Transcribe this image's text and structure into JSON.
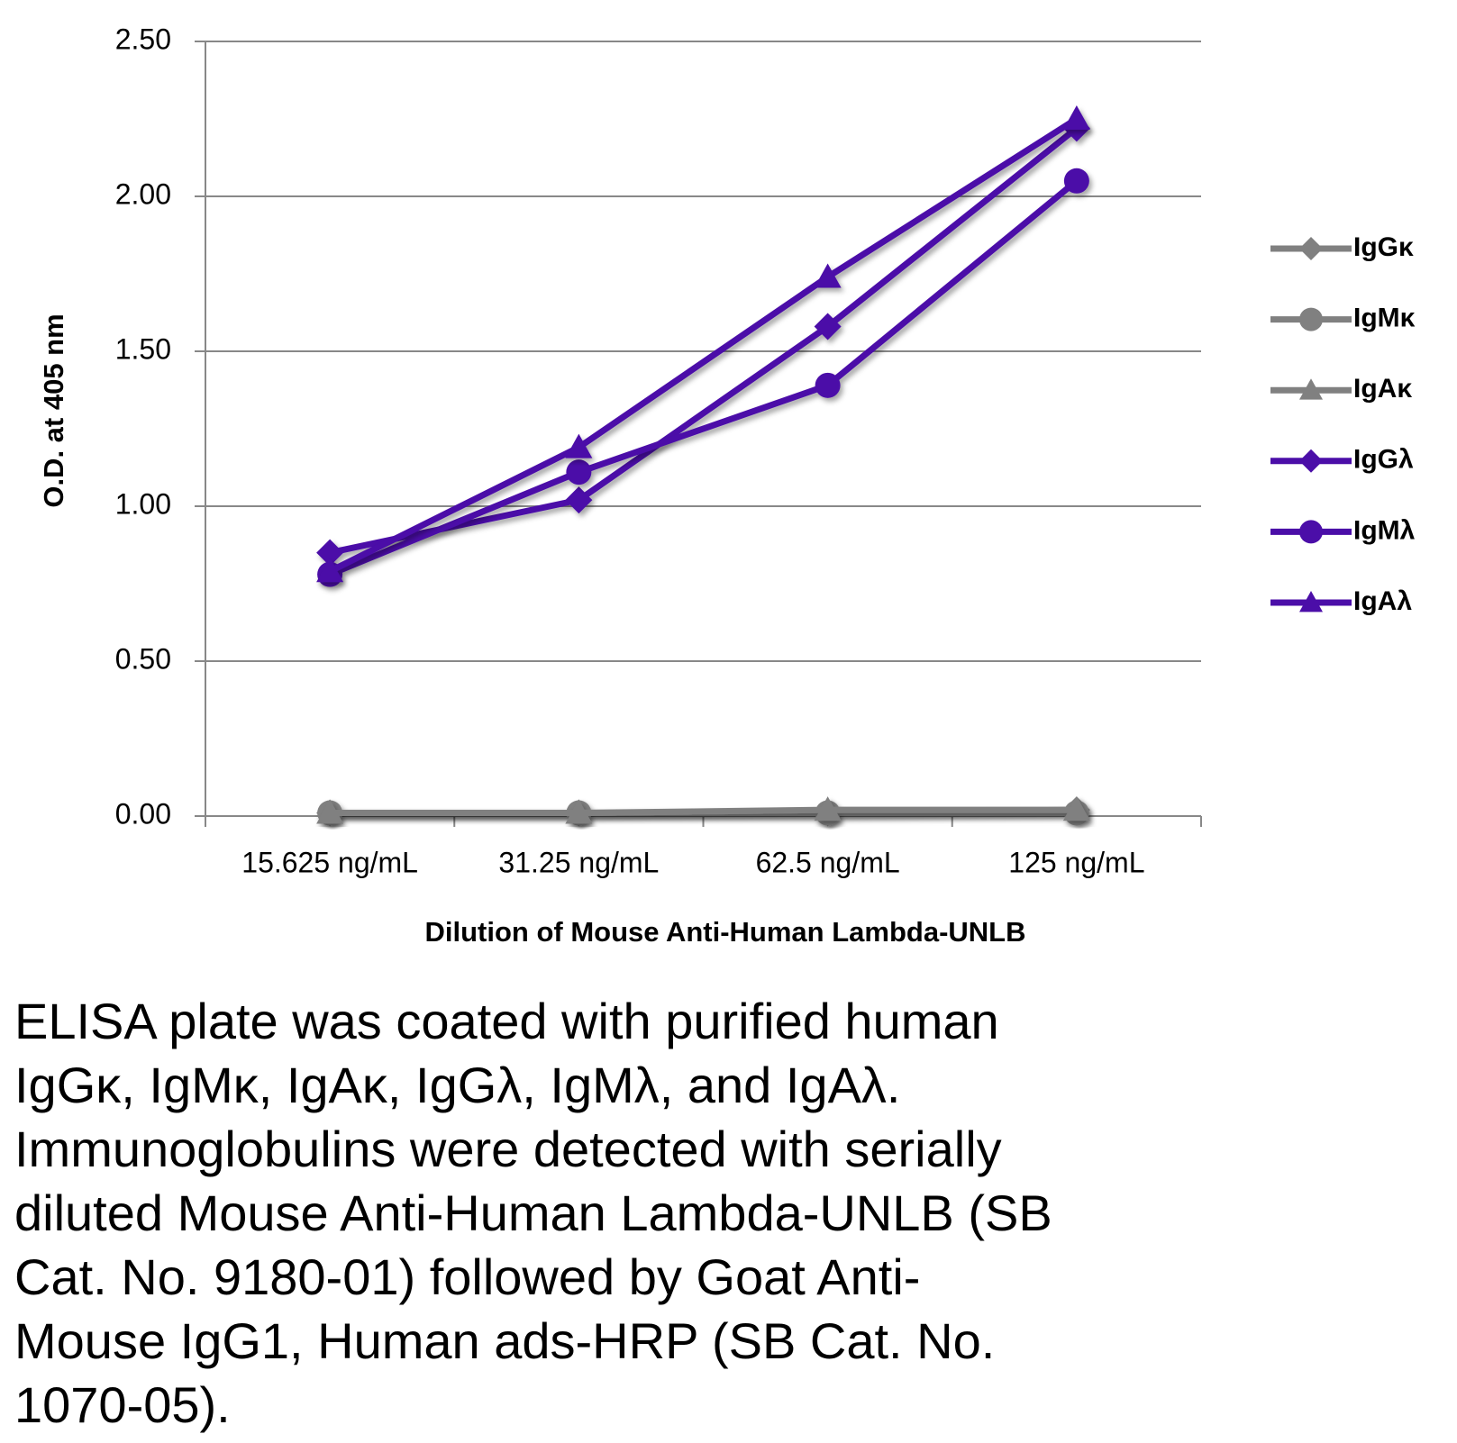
{
  "chart_data": {
    "type": "line",
    "x_label": "Dilution of Mouse Anti-Human Lambda-UNLB",
    "y_label": "O.D. at 405 nm",
    "categories": [
      "15.625 ng/mL",
      "31.25 ng/mL",
      "62.5 ng/mL",
      "125 ng/mL"
    ],
    "ylim": [
      0,
      2.5
    ],
    "yticks": [
      {
        "value": 0,
        "label": "0.00"
      },
      {
        "value": 0.5,
        "label": "0.50"
      },
      {
        "value": 1,
        "label": "1.00"
      },
      {
        "value": 1.5,
        "label": "1.50"
      },
      {
        "value": 2,
        "label": "2.00"
      },
      {
        "value": 2.5,
        "label": "2.50"
      }
    ],
    "grid": true,
    "legend": "right",
    "series": [
      {
        "name": "IgGκ",
        "color": "#808080",
        "marker": "diamond",
        "values": [
          0.01,
          0.01,
          0.01,
          0.02
        ]
      },
      {
        "name": "IgMκ",
        "color": "#808080",
        "marker": "circle",
        "values": [
          0.01,
          0.01,
          0.01,
          0.01
        ]
      },
      {
        "name": "IgAκ",
        "color": "#808080",
        "marker": "triangle",
        "values": [
          0.01,
          0.01,
          0.02,
          0.02
        ]
      },
      {
        "name": "IgGλ",
        "color": "#4b0ea8",
        "marker": "diamond",
        "values": [
          0.85,
          1.02,
          1.58,
          2.22
        ]
      },
      {
        "name": "IgMλ",
        "color": "#4b0ea8",
        "marker": "circle",
        "values": [
          0.78,
          1.11,
          1.39,
          2.05
        ]
      },
      {
        "name": "IgAλ",
        "color": "#4b0ea8",
        "marker": "triangle",
        "values": [
          0.79,
          1.19,
          1.74,
          2.25
        ]
      }
    ]
  },
  "caption": [
    "ELISA plate was coated with purified human",
    "IgGκ, IgMκ, IgAκ, IgGλ, IgMλ, and IgAλ.",
    "Immunoglobulins were detected with serially",
    "diluted Mouse Anti-Human Lambda-UNLB (SB",
    "Cat. No. 9180-01) followed by Goat Anti-",
    "Mouse IgG1, Human ads-HRP (SB Cat. No.",
    "1070-05)."
  ]
}
